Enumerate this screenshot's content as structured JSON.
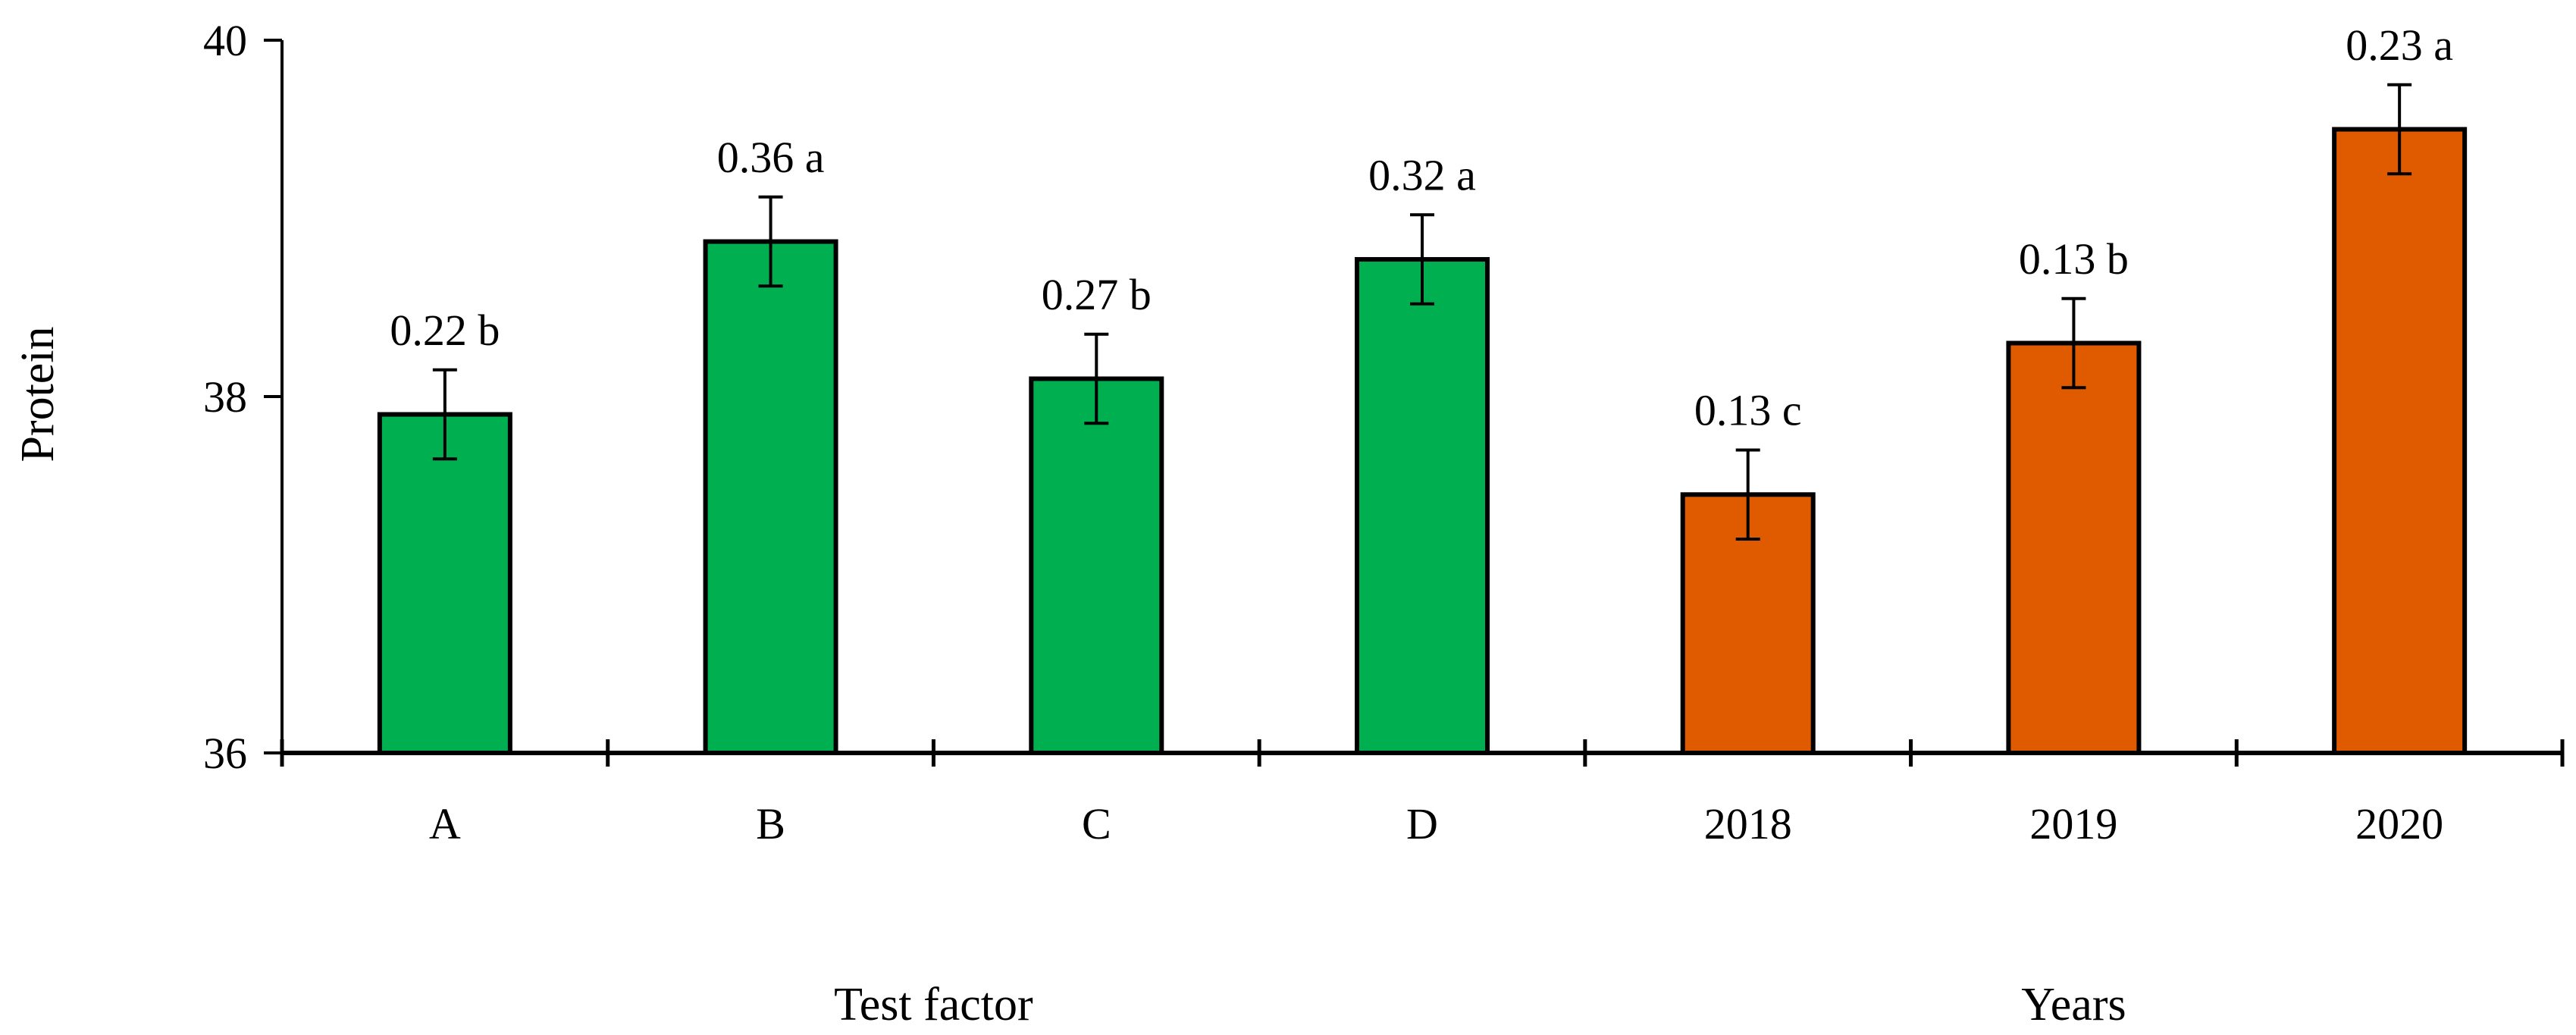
{
  "chart_data": {
    "type": "bar",
    "ylabel": "Protein",
    "ylim": [
      36,
      40
    ],
    "yticks": [
      36,
      38,
      40
    ],
    "grid": false,
    "categories": [
      "A",
      "B",
      "C",
      "D",
      "2018",
      "2019",
      "2020"
    ],
    "groups": [
      {
        "label": "Test factor",
        "categories": [
          "A",
          "B",
          "C",
          "D"
        ],
        "color": "#00b050"
      },
      {
        "label": "Years",
        "categories": [
          "2018",
          "2019",
          "2020"
        ],
        "color": "#e05a00"
      }
    ],
    "values": [
      37.9,
      38.87,
      38.1,
      38.77,
      37.45,
      38.3,
      39.5
    ],
    "errors": [
      0.25,
      0.25,
      0.25,
      0.25,
      0.25,
      0.25,
      0.25
    ],
    "data_labels": [
      "0.22 b",
      "0.36 a",
      "0.27 b",
      "0.32 a",
      "0.13 c",
      "0.13 b",
      "0.23 a"
    ]
  }
}
